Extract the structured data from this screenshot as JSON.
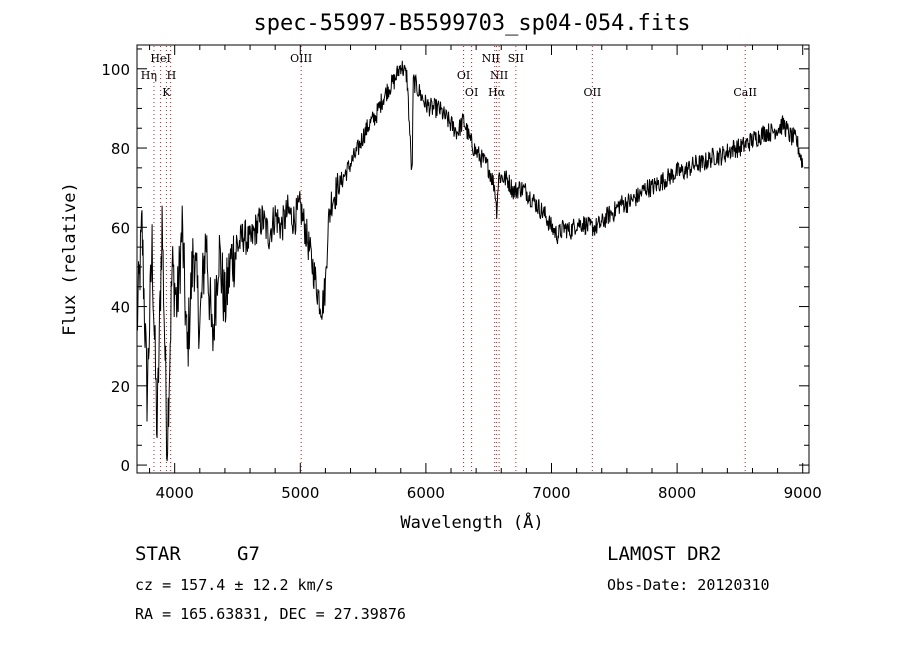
{
  "chart_data": {
    "type": "line",
    "title": "spec-55997-B5599703_sp04-054.fits",
    "xlabel": "Wavelength (Å)",
    "ylabel": "Flux (relative)",
    "xlim": [
      3700,
      9050
    ],
    "ylim": [
      -2,
      106
    ],
    "xticks": [
      4000,
      5000,
      6000,
      7000,
      8000,
      9000
    ],
    "yticks": [
      0,
      20,
      40,
      60,
      80,
      100
    ],
    "grid": false,
    "series": [
      {
        "color": "#000000",
        "x": [
          3700,
          3740,
          3780,
          3820,
          3860,
          3900,
          3940,
          3980,
          4020,
          4060,
          4100,
          4150,
          4200,
          4250,
          4300,
          4350,
          4400,
          4450,
          4500,
          4550,
          4600,
          4650,
          4700,
          4750,
          4800,
          4850,
          4900,
          4950,
          5000,
          5050,
          5100,
          5150,
          5175,
          5200,
          5220,
          5250,
          5300,
          5350,
          5400,
          5450,
          5500,
          5550,
          5600,
          5650,
          5700,
          5750,
          5800,
          5850,
          5890,
          5900,
          5950,
          6000,
          6050,
          6100,
          6150,
          6200,
          6250,
          6300,
          6350,
          6400,
          6450,
          6500,
          6550,
          6563,
          6580,
          6650,
          6700,
          6750,
          6800,
          6850,
          6900,
          6950,
          7000,
          7050,
          7100,
          7150,
          7200,
          7250,
          7300,
          7350,
          7400,
          7450,
          7500,
          7550,
          7600,
          7650,
          7700,
          7750,
          7800,
          7850,
          7900,
          7950,
          8000,
          8050,
          8100,
          8150,
          8200,
          8250,
          8300,
          8350,
          8400,
          8450,
          8500,
          8550,
          8600,
          8650,
          8700,
          8750,
          8800,
          8850,
          8900,
          8950,
          9000
        ],
        "y": [
          35,
          60,
          18,
          55,
          8,
          62,
          5,
          50,
          40,
          60,
          28,
          55,
          35,
          58,
          30,
          55,
          40,
          52,
          55,
          58,
          56,
          60,
          62,
          58,
          63,
          60,
          64,
          62,
          65,
          58,
          50,
          42,
          40,
          45,
          60,
          67,
          70,
          73,
          76,
          79,
          83,
          86,
          88,
          92,
          95,
          97,
          101,
          98,
          72,
          97,
          94,
          91,
          90,
          90,
          88,
          86,
          84,
          87,
          82,
          79,
          77,
          75,
          70,
          64,
          73,
          72,
          69,
          70,
          69,
          67,
          65,
          63,
          60,
          58,
          60,
          59,
          61,
          61,
          60,
          60,
          61,
          63,
          64,
          66,
          66,
          67,
          68,
          70,
          70,
          71,
          72,
          73,
          74,
          74,
          75,
          76,
          76,
          77,
          78,
          78,
          79,
          80,
          80,
          81,
          82,
          83,
          84,
          84,
          85,
          86,
          83,
          82,
          76
        ]
      }
    ],
    "lines": [
      {
        "label": "HeI",
        "wavelength": 3888
      },
      {
        "label": "Hη",
        "wavelength": 3835
      },
      {
        "label": "H",
        "wavelength": 3968
      },
      {
        "label": "K",
        "wavelength": 3934
      },
      {
        "label": "OIII",
        "wavelength": 5007
      },
      {
        "label": "OI",
        "wavelength": 6300
      },
      {
        "label": "OI",
        "wavelength": 6364
      },
      {
        "label": "NII",
        "wavelength": 6548
      },
      {
        "label": "NII",
        "wavelength": 6583
      },
      {
        "label": "Hα",
        "wavelength": 6563
      },
      {
        "label": "SII",
        "wavelength": 6716
      },
      {
        "label": "OII",
        "wavelength": 7325
      },
      {
        "label": "CaII",
        "wavelength": 8542
      }
    ]
  },
  "info": {
    "object_class": "STAR",
    "subclass": "G7",
    "survey": "LAMOST DR2",
    "cz": "cz = 157.4 ± 12.2 km/s",
    "obs_date": "Obs-Date: 20120310",
    "coords": "RA = 165.63831, DEC =  27.39876"
  }
}
